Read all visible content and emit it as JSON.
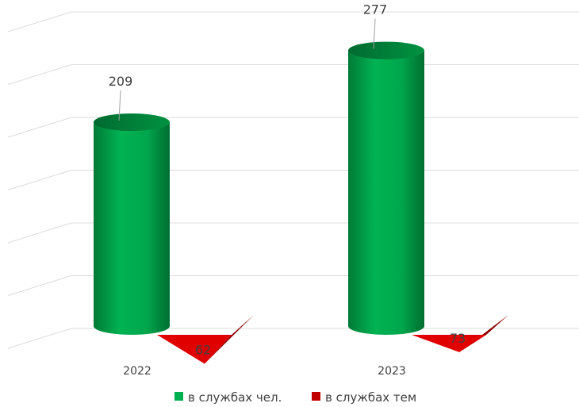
{
  "chart_data": {
    "type": "bar",
    "style": "3d-cylinder-and-pyramid",
    "categories": [
      "2022",
      "2023"
    ],
    "series": [
      {
        "name": "в службах чел.",
        "values": [
          209,
          277
        ],
        "shape": "cylinder",
        "color": "#00b050"
      },
      {
        "name": "в службах тем",
        "values": [
          62,
          73
        ],
        "shape": "pyramid",
        "color": "#e00000"
      }
    ],
    "ylim": [
      0,
      300
    ],
    "grid": true,
    "legend_position": "bottom",
    "data_labels": true
  }
}
